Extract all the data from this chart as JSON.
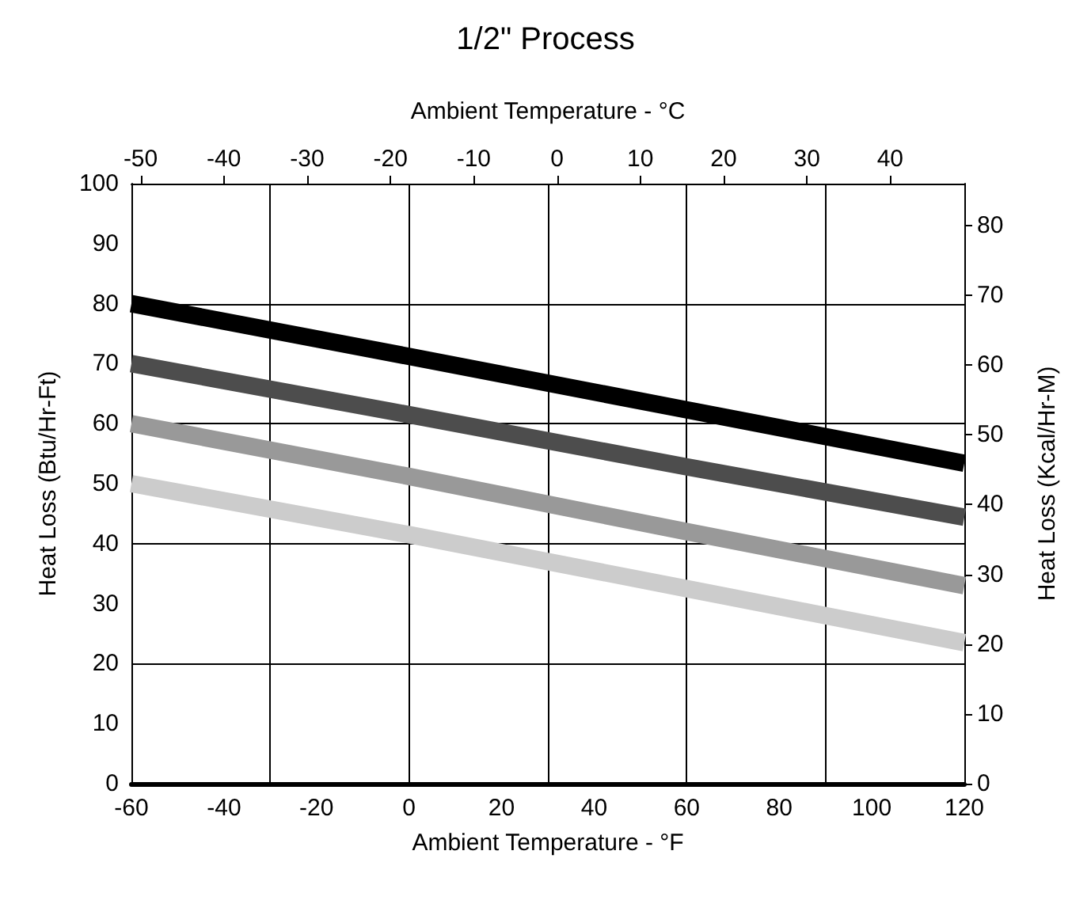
{
  "chart_data": {
    "type": "line",
    "title": "1/2\" Process",
    "xlabel": "Ambient Temperature - °F",
    "x2label": "Ambient Temperature - °C",
    "ylabel": "Heat Loss (Btu/Hr-Ft)",
    "y2label": "Heat Loss (Kcal/Hr-M)",
    "x": [
      -60,
      0,
      60,
      120
    ],
    "series": [
      {
        "color": "#000000",
        "values": [
          80,
          71.2,
          62.3,
          53.4
        ]
      },
      {
        "color": "#4d4d4d",
        "values": [
          70,
          61.5,
          52.8,
          44.4
        ]
      },
      {
        "color": "#999999",
        "values": [
          60,
          51.2,
          42,
          33
        ]
      },
      {
        "color": "#cccccc",
        "values": [
          50,
          41.5,
          32.5,
          23.5
        ]
      }
    ],
    "xlim": [
      -60,
      120
    ],
    "xticks": [
      -60,
      -40,
      -20,
      0,
      20,
      40,
      60,
      80,
      100,
      120
    ],
    "x2lim": [
      -51.1,
      48.9
    ],
    "x2ticks": [
      -50,
      -40,
      -30,
      -20,
      -10,
      0,
      10,
      20,
      30,
      40
    ],
    "ylim": [
      0,
      100
    ],
    "yticks": [
      0,
      10,
      20,
      30,
      40,
      50,
      60,
      70,
      80,
      90,
      100
    ],
    "y2lim": [
      0,
      86
    ],
    "y2ticks": [
      0,
      10,
      20,
      30,
      40,
      50,
      60,
      70,
      80
    ],
    "grid": true,
    "marker": "none",
    "line_style": "solid"
  }
}
